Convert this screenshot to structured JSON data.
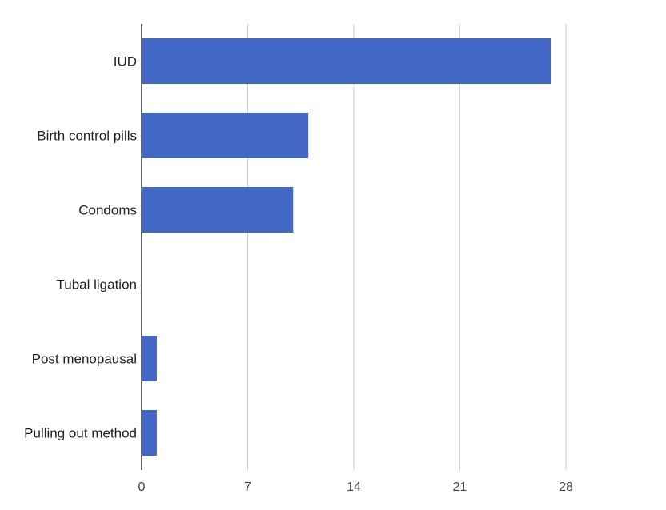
{
  "chart_data": {
    "type": "bar",
    "orientation": "horizontal",
    "categories": [
      "IUD",
      "Birth control pills",
      "Condoms",
      "Tubal ligation",
      "Post menopausal",
      "Pulling out method"
    ],
    "values": [
      27,
      11,
      10,
      0,
      1,
      1
    ],
    "xticks": [
      0,
      7,
      14,
      21,
      28
    ],
    "xlim": [
      0,
      34
    ],
    "grid": true,
    "legend": "none",
    "bar_color": "#4267c4",
    "grid_color": "#cccccc",
    "axis_color": "#333333"
  }
}
